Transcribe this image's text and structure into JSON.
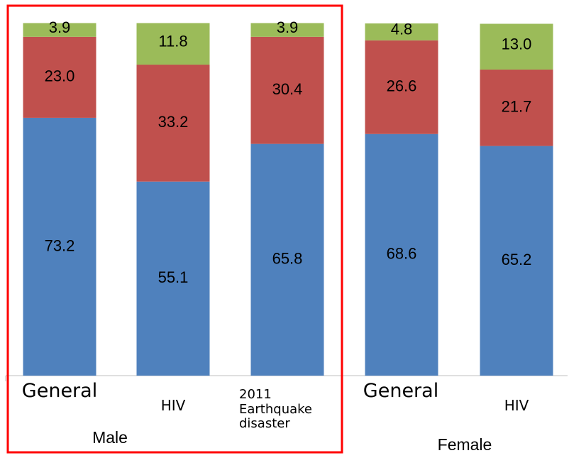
{
  "chart_data": {
    "type": "stacked_bar",
    "categories": [
      "General",
      "HIV",
      "2011 Earthquake disaster",
      "General",
      "HIV"
    ],
    "groups": [
      "Male",
      "Female"
    ],
    "ylim": [
      0,
      100
    ],
    "series": [
      {
        "color": "#4f81bd",
        "values": [
          73.2,
          55.1,
          65.8,
          68.6,
          65.2
        ],
        "value_labels": [
          "73.2",
          "55.1",
          "65.8",
          "68.6",
          "65.2"
        ]
      },
      {
        "color": "#c0504d",
        "values": [
          23.0,
          33.2,
          30.4,
          26.6,
          21.7
        ],
        "value_labels": [
          "23.0",
          "33.2",
          "30.4",
          "26.6",
          "21.7"
        ]
      },
      {
        "color": "#9bbb59",
        "values": [
          3.9,
          11.8,
          3.9,
          4.8,
          13.0
        ],
        "value_labels": [
          "3.9",
          "11.8",
          "3.9",
          "4.8",
          "13.0"
        ]
      }
    ]
  }
}
